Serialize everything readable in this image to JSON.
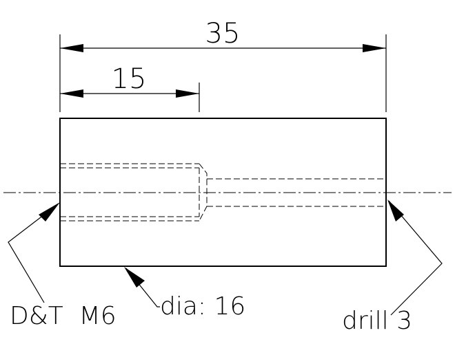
{
  "dimensions": {
    "overall_length": "35",
    "counterbore_depth": "15"
  },
  "callouts": {
    "left_end": "D&T  M6",
    "outer_diameter": "dia: 16",
    "right_end": "drill 3"
  }
}
